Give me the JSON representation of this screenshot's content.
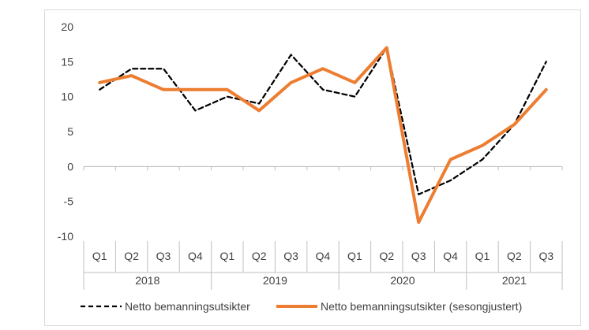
{
  "chart_data": {
    "type": "line",
    "title": "",
    "xlabel": "",
    "ylabel": "",
    "ylim": [
      -10,
      20
    ],
    "yticks": [
      -10,
      -5,
      0,
      5,
      10,
      15,
      20
    ],
    "grid": false,
    "legend_position": "bottom",
    "quarters": [
      "Q1",
      "Q2",
      "Q3",
      "Q4",
      "Q1",
      "Q2",
      "Q3",
      "Q4",
      "Q1",
      "Q2",
      "Q3",
      "Q4",
      "Q1",
      "Q2",
      "Q3"
    ],
    "years": [
      {
        "label": "2018",
        "start": 0,
        "count": 4
      },
      {
        "label": "2019",
        "start": 4,
        "count": 4
      },
      {
        "label": "2020",
        "start": 8,
        "count": 4
      },
      {
        "label": "2021",
        "start": 12,
        "count": 3
      }
    ],
    "series": [
      {
        "name": "Netto bemanningsutsikter",
        "color": "#000000",
        "style": "dashed",
        "values": [
          11,
          14,
          14,
          8,
          10,
          9,
          16,
          11,
          10,
          17,
          -4,
          -2,
          1,
          6,
          15
        ]
      },
      {
        "name": "Netto bemanningsutsikter (sesongjustert)",
        "color": "#ed7d31",
        "style": "solid",
        "values": [
          12,
          13,
          11,
          11,
          11,
          8,
          12,
          14,
          12,
          17,
          -8,
          1,
          3,
          6,
          11
        ]
      }
    ]
  }
}
